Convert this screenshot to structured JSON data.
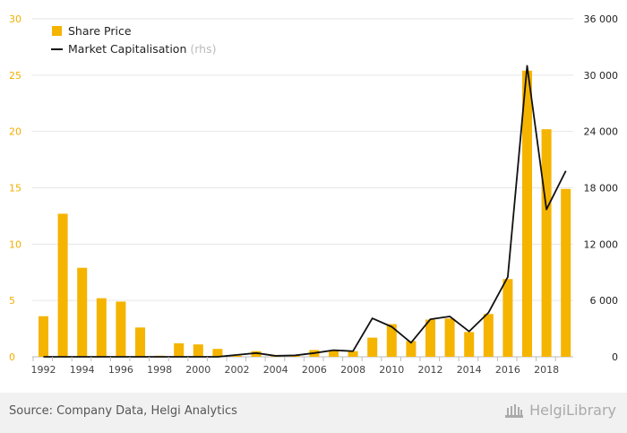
{
  "chart_data": {
    "type": "bar+line",
    "categories": [
      "1992",
      "1993",
      "1994",
      "1995",
      "1996",
      "1997",
      "1998",
      "1999",
      "2000",
      "2001",
      "2002",
      "2003",
      "2004",
      "2005",
      "2006",
      "2007",
      "2008",
      "2009",
      "2010",
      "2011",
      "2012",
      "2013",
      "2014",
      "2015",
      "2016",
      "2017",
      "2018",
      "2019"
    ],
    "x_tick_labels": [
      "1992",
      "1994",
      "1996",
      "1998",
      "2000",
      "2002",
      "2004",
      "2006",
      "2008",
      "2010",
      "2012",
      "2014",
      "2016",
      "2018"
    ],
    "series": [
      {
        "name": "Share Price",
        "type": "bar",
        "axis": "left",
        "color": "#f5b400",
        "values": [
          3.6,
          12.7,
          7.9,
          5.2,
          4.9,
          2.6,
          0.1,
          1.2,
          1.1,
          0.7,
          0.1,
          0.5,
          0.1,
          0.1,
          0.6,
          0.6,
          0.5,
          1.7,
          2.9,
          1.4,
          3.3,
          3.4,
          2.2,
          3.8,
          6.9,
          25.4,
          20.2,
          14.9
        ]
      },
      {
        "name": "Market Capitalisation",
        "type": "line",
        "axis": "right",
        "color": "#111111",
        "values": [
          0,
          0,
          0,
          0,
          0,
          0,
          0,
          0,
          0,
          0,
          200,
          400,
          100,
          150,
          400,
          700,
          600,
          4100,
          3200,
          1500,
          4000,
          4300,
          2700,
          4700,
          8500,
          31000,
          15700,
          19800
        ]
      }
    ],
    "legend": {
      "placement": "top-left",
      "entries": [
        {
          "label": "Share Price",
          "suffix": ""
        },
        {
          "label": "Market Capitalisation",
          "suffix": "(rhs)"
        }
      ]
    },
    "y_left": {
      "min": 0,
      "max": 30,
      "ticks": [
        "0",
        "5",
        "10",
        "15",
        "20",
        "25",
        "30"
      ]
    },
    "y_right": {
      "min": 0,
      "max": 36000,
      "ticks": [
        "0",
        "6 000",
        "12 000",
        "18 000",
        "24 000",
        "30 000",
        "36 000"
      ]
    },
    "grid": true
  },
  "footer": {
    "source": "Source: Company Data, Helgi Analytics",
    "brand": "HelgiLibrary",
    "brand_icon": "helgi-building-icon"
  }
}
